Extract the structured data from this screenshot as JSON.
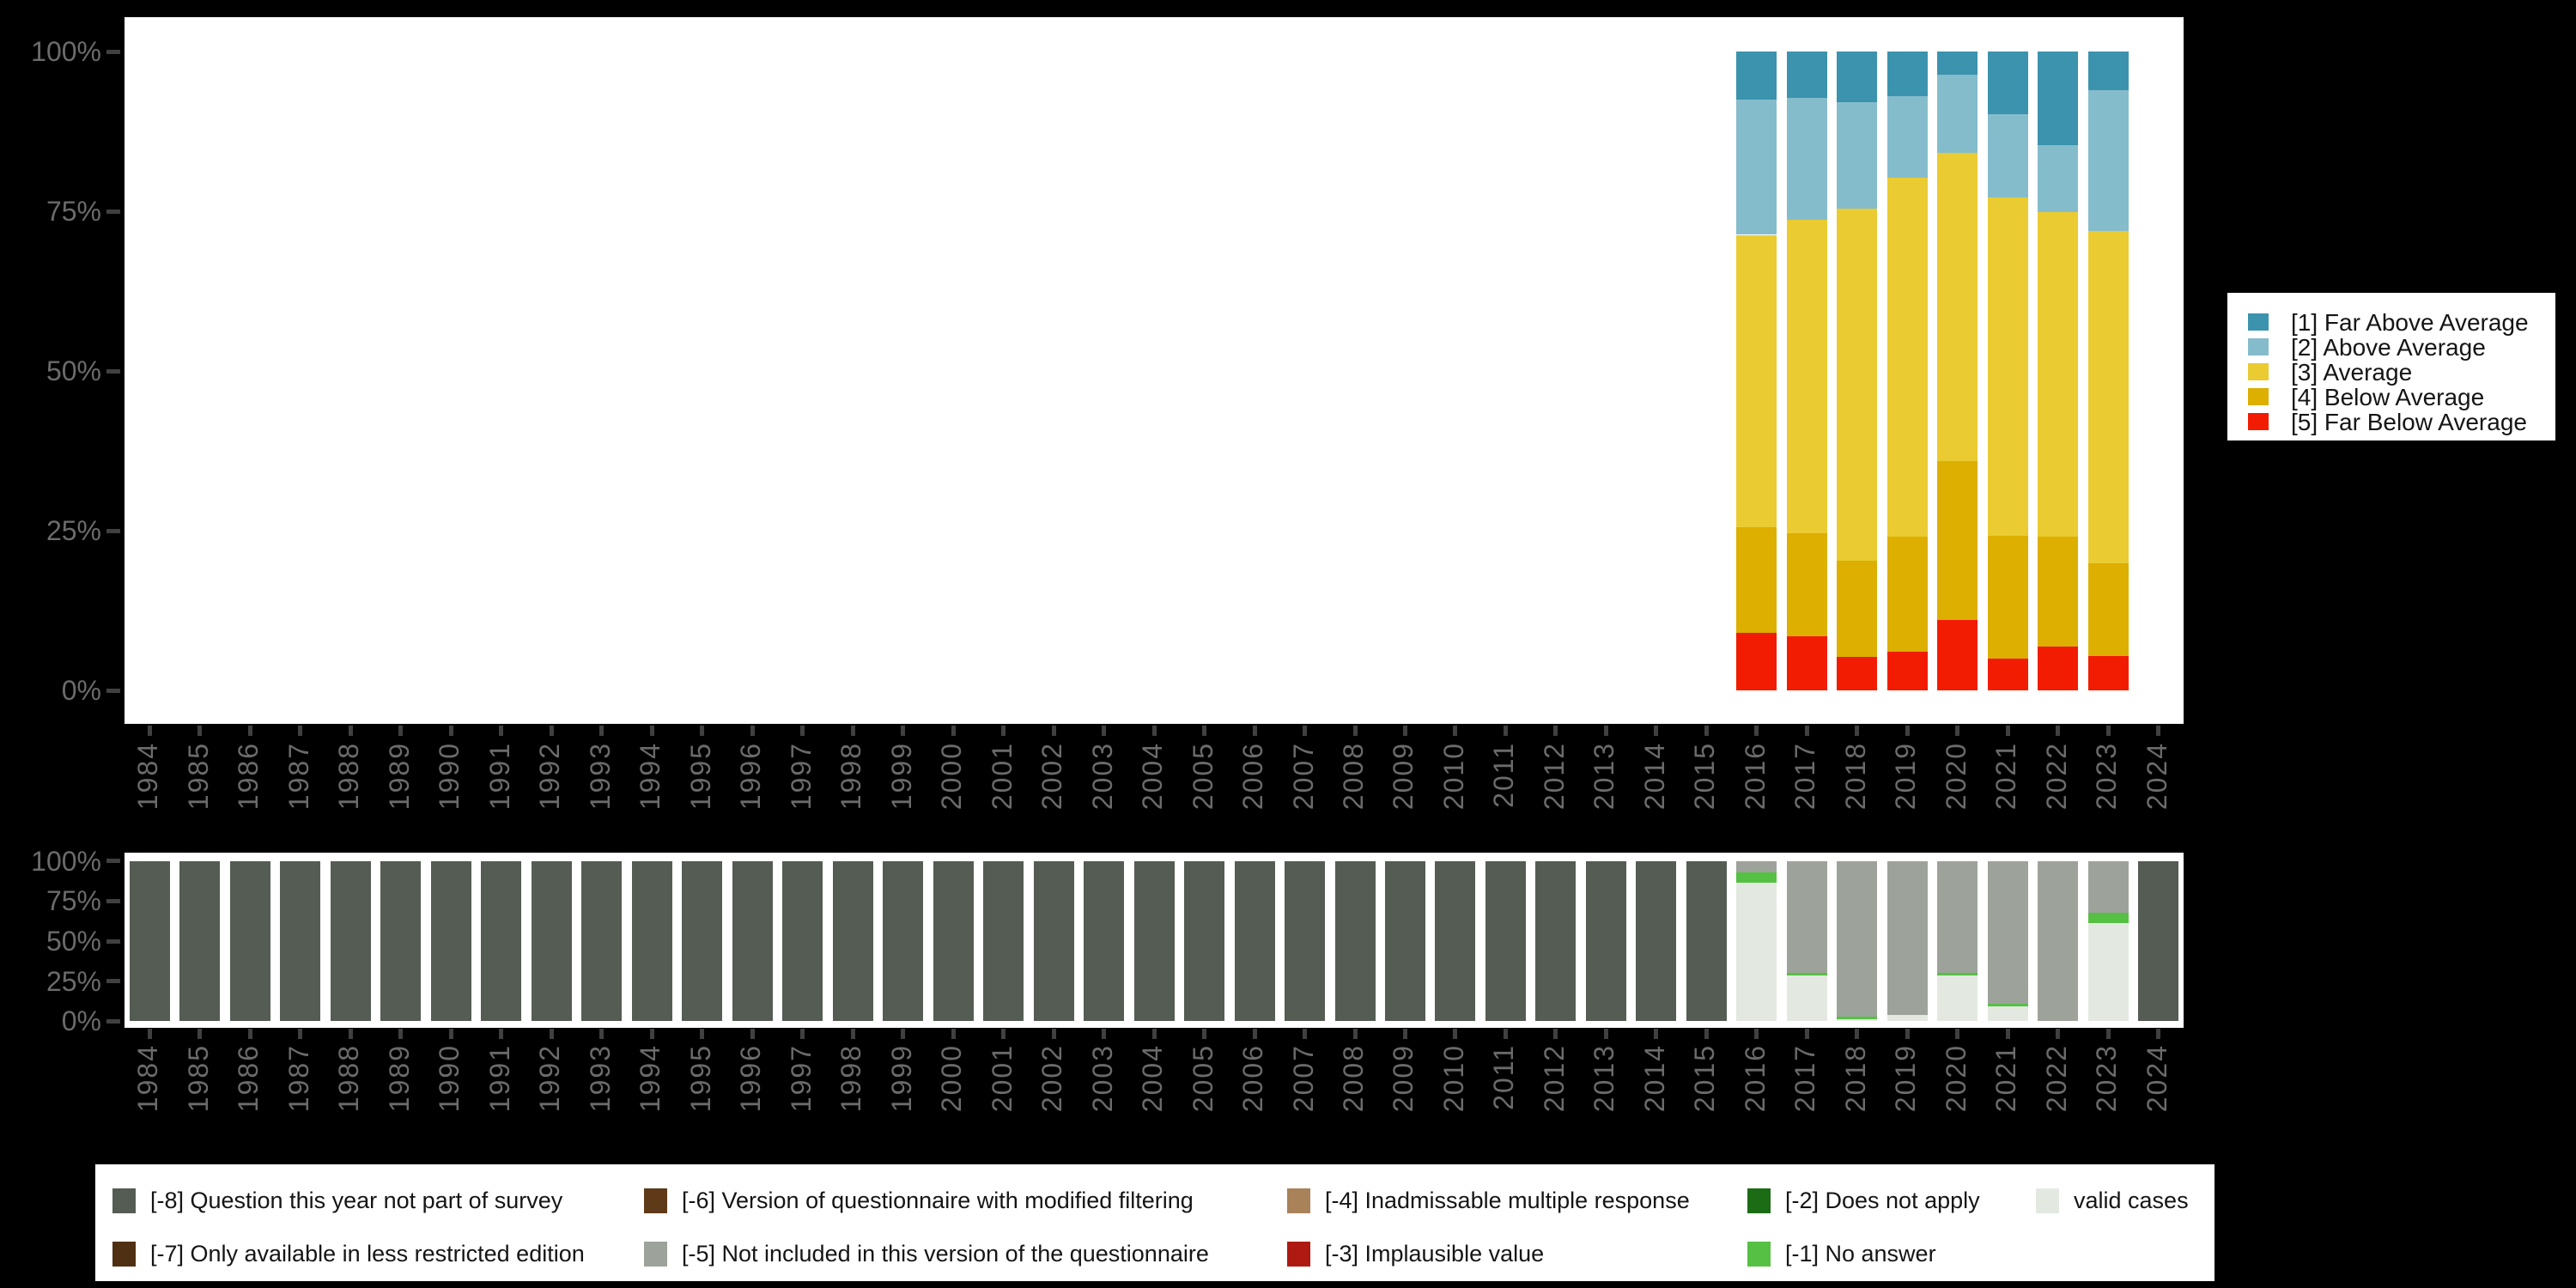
{
  "page": {
    "background": "#000000",
    "panel_background": "#ffffff"
  },
  "axes": {
    "x_years": [
      "1984",
      "1985",
      "1986",
      "1987",
      "1988",
      "1989",
      "1990",
      "1991",
      "1992",
      "1993",
      "1994",
      "1995",
      "1996",
      "1997",
      "1998",
      "1999",
      "2000",
      "2001",
      "2002",
      "2003",
      "2004",
      "2005",
      "2006",
      "2007",
      "2008",
      "2009",
      "2010",
      "2011",
      "2012",
      "2013",
      "2014",
      "2015",
      "2016",
      "2017",
      "2018",
      "2019",
      "2020",
      "2021",
      "2022",
      "2023",
      "2024"
    ],
    "y_ticks": [
      "0%",
      "25%",
      "50%",
      "75%",
      "100%"
    ],
    "label_color": "#6B6B6B",
    "tick_color": "#404040"
  },
  "chart_data": [
    {
      "type": "bar",
      "stacked": true,
      "percent": true,
      "title": "",
      "xlabel": "",
      "ylabel": "",
      "ylim": [
        0,
        100
      ],
      "grid": false,
      "legend_position": "right",
      "categories": [
        "1984",
        "1985",
        "1986",
        "1987",
        "1988",
        "1989",
        "1990",
        "1991",
        "1992",
        "1993",
        "1994",
        "1995",
        "1996",
        "1997",
        "1998",
        "1999",
        "2000",
        "2001",
        "2002",
        "2003",
        "2004",
        "2005",
        "2006",
        "2007",
        "2008",
        "2009",
        "2010",
        "2011",
        "2012",
        "2013",
        "2014",
        "2015",
        "2016",
        "2017",
        "2018",
        "2019",
        "2020",
        "2021",
        "2022",
        "2023",
        "2024"
      ],
      "series": [
        {
          "name": "[1] Far Above Average",
          "color": "#3B93AD",
          "values": {
            "2016": 7.5,
            "2017": 7.3,
            "2018": 7.9,
            "2019": 7.0,
            "2020": 3.6,
            "2021": 9.8,
            "2022": 14.6,
            "2023": 6.0
          }
        },
        {
          "name": "[2] Above Average",
          "color": "#85BCCB",
          "values": {
            "2016": 21.2,
            "2017": 19.0,
            "2018": 16.7,
            "2019": 12.7,
            "2020": 12.2,
            "2021": 13.1,
            "2022": 10.5,
            "2023": 22.1
          }
        },
        {
          "name": "[3] Average",
          "color": "#EACB32",
          "values": {
            "2016": 45.7,
            "2017": 49.1,
            "2018": 55.1,
            "2019": 56.2,
            "2020": 48.3,
            "2021": 52.9,
            "2022": 50.8,
            "2023": 52.0
          }
        },
        {
          "name": "[4] Below Average",
          "color": "#DDAF00",
          "values": {
            "2016": 16.6,
            "2017": 16.1,
            "2018": 15.0,
            "2019": 18.0,
            "2020": 24.9,
            "2021": 19.2,
            "2022": 17.2,
            "2023": 14.5
          }
        },
        {
          "name": "[5] Far Below Average",
          "color": "#F21C02",
          "values": {
            "2016": 9.0,
            "2017": 8.5,
            "2018": 5.3,
            "2019": 6.1,
            "2020": 11.0,
            "2021": 5.0,
            "2022": 6.9,
            "2023": 5.4
          }
        }
      ]
    },
    {
      "type": "bar",
      "stacked": true,
      "percent": true,
      "title": "",
      "xlabel": "",
      "ylabel": "",
      "ylim": [
        0,
        100
      ],
      "grid": false,
      "categories": [
        "1984",
        "1985",
        "1986",
        "1987",
        "1988",
        "1989",
        "1990",
        "1991",
        "1992",
        "1993",
        "1994",
        "1995",
        "1996",
        "1997",
        "1998",
        "1999",
        "2000",
        "2001",
        "2002",
        "2003",
        "2004",
        "2005",
        "2006",
        "2007",
        "2008",
        "2009",
        "2010",
        "2011",
        "2012",
        "2013",
        "2014",
        "2015",
        "2016",
        "2017",
        "2018",
        "2019",
        "2020",
        "2021",
        "2022",
        "2023",
        "2024"
      ],
      "series": [
        {
          "name": "[-8] Question this year not part of survey",
          "color": "#545C54",
          "values": {
            "1984": 100,
            "1985": 100,
            "1986": 100,
            "1987": 100,
            "1988": 100,
            "1989": 100,
            "1990": 100,
            "1991": 100,
            "1992": 100,
            "1993": 100,
            "1994": 100,
            "1995": 100,
            "1996": 100,
            "1997": 100,
            "1998": 100,
            "1999": 100,
            "2000": 100,
            "2001": 100,
            "2002": 100,
            "2003": 100,
            "2004": 100,
            "2005": 100,
            "2006": 100,
            "2007": 100,
            "2008": 100,
            "2009": 100,
            "2010": 100,
            "2011": 100,
            "2012": 100,
            "2013": 100,
            "2014": 100,
            "2015": 100,
            "2024": 100
          }
        },
        {
          "name": "[-5] Not included in this version of the questionnaire",
          "color": "#9DA39B",
          "values": {
            "2016": 7.1,
            "2017": 69.9,
            "2018": 97.2,
            "2019": 96.2,
            "2020": 70.0,
            "2021": 89.3,
            "2022": 100,
            "2023": 32.2
          }
        },
        {
          "name": "[-1] No answer",
          "color": "#56C044",
          "values": {
            "2016": 6.6,
            "2017": 1.5,
            "2018": 1.5,
            "2020": 1.6,
            "2021": 1.6,
            "2023": 6.5
          }
        },
        {
          "name": "valid cases",
          "color": "#E3E9E1",
          "values": {
            "2016": 86.3,
            "2017": 28.6,
            "2018": 1.3,
            "2019": 3.8,
            "2020": 28.4,
            "2021": 9.1,
            "2023": 61.3
          }
        }
      ]
    }
  ],
  "missing_legend": {
    "entries": [
      {
        "label": "[-8] Question this year not part of survey",
        "color": "#545C54",
        "col": 0,
        "row": 0
      },
      {
        "label": "[-7] Only available in less restricted edition",
        "color": "#4F3013",
        "col": 0,
        "row": 1
      },
      {
        "label": "[-6] Version of questionnaire with modified filtering",
        "color": "#5E3A18",
        "col": 1,
        "row": 0
      },
      {
        "label": "[-5] Not included in this version of the questionnaire",
        "color": "#9DA39B",
        "col": 1,
        "row": 1
      },
      {
        "label": "[-4] Inadmissable multiple response",
        "color": "#A9825A",
        "col": 2,
        "row": 0
      },
      {
        "label": "[-3] Implausible value",
        "color": "#AE1A12",
        "col": 2,
        "row": 1
      },
      {
        "label": "[-2] Does not apply",
        "color": "#1C6C15",
        "col": 3,
        "row": 0
      },
      {
        "label": "[-1] No answer",
        "color": "#56C044",
        "col": 3,
        "row": 1
      },
      {
        "label": "valid cases",
        "color": "#E3E9E1",
        "col": 4,
        "row": 0
      }
    ]
  }
}
